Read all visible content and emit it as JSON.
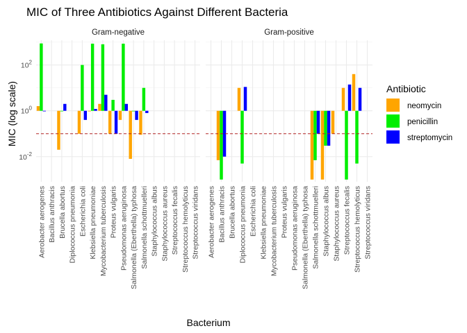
{
  "chart_data": {
    "type": "bar",
    "title": "MIC of Three Antibiotics Against Different Bacteria",
    "xlabel": "Bacterium",
    "ylabel": "MIC (log scale)",
    "y_scale": "log10",
    "y_ticks": [
      {
        "value": 0.01,
        "base": "10",
        "exp": "-2"
      },
      {
        "value": 1,
        "base": "10",
        "exp": "0"
      },
      {
        "value": 100,
        "base": "10",
        "exp": "2"
      }
    ],
    "ylim": [
      0.0008,
      1200
    ],
    "reference_line": {
      "value": 0.1,
      "style": "dashed",
      "color": "#b22222"
    },
    "legend": {
      "title": "Antibiotic",
      "entries": [
        {
          "name": "neomycin",
          "color": "#FFA500"
        },
        {
          "name": "penicillin",
          "color": "#00EE00"
        },
        {
          "name": "streptomycin",
          "color": "#0000FF"
        }
      ]
    },
    "panels": [
      {
        "label": "Gram-negative",
        "categories": [
          "Aerobacter aerogenes",
          "Bacillus anthracis",
          "Brucella abortus",
          "Diplococcus pneumonia",
          "Escherichia coli",
          "Klebsiella pneumoniae",
          "Mycobacterium tuberculosis",
          "Proteus vulgaris",
          "Pseudomonas aeruginosa",
          "Salmonella (Eberthella) typhosa",
          "Salmonella schottmuelleri",
          "Staphylococcus albus",
          "Staphylococcus aureus",
          "Streptococcus fecalis",
          "Streptococcus hemolyticus",
          "Streptococcus viridans"
        ],
        "series": [
          {
            "name": "neomycin",
            "values": [
              1.6,
              null,
              0.02,
              null,
              0.1,
              1,
              2,
              0.1,
              0.4,
              0.008,
              0.09,
              null,
              null,
              null,
              null,
              null
            ]
          },
          {
            "name": "penicillin",
            "values": [
              870,
              null,
              1,
              null,
              100,
              850,
              800,
              3,
              850,
              1,
              10,
              null,
              null,
              null,
              null,
              null
            ]
          },
          {
            "name": "streptomycin",
            "values": [
              1,
              null,
              2,
              null,
              0.4,
              1.2,
              5,
              0.1,
              2,
              0.4,
              0.8,
              null,
              null,
              null,
              null,
              null
            ]
          }
        ]
      },
      {
        "label": "Gram-positive",
        "categories": [
          "Aerobacter aerogenes",
          "Bacillus anthracis",
          "Brucella abortus",
          "Diplococcus pneumonia",
          "Escherichia coli",
          "Klebsiella pneumoniae",
          "Mycobacterium tuberculosis",
          "Proteus vulgaris",
          "Pseudomonas aeruginosa",
          "Salmonella (Eberthella) typhosa",
          "Salmonella schottmuelleri",
          "Staphylococcus albus",
          "Staphylococcus aureus",
          "Streptococcus fecalis",
          "Streptococcus hemolyticus",
          "Streptococcus viridans"
        ],
        "series": [
          {
            "name": "neomycin",
            "values": [
              null,
              0.007,
              null,
              10,
              null,
              null,
              null,
              null,
              null,
              null,
              0.001,
              0.001,
              0.1,
              10,
              null,
              null
            ]
          },
          {
            "name": "penicillin",
            "values": [
              null,
              0.001,
              null,
              0.005,
              null,
              null,
              null,
              null,
              null,
              null,
              0.007,
              0.03,
              null,
              0.001,
              0.005,
              null
            ]
          },
          {
            "name": "streptomycin",
            "values": [
              null,
              0.01,
              null,
              11,
              null,
              null,
              null,
              null,
              null,
              null,
              0.1,
              0.03,
              null,
              14,
              10,
              null
            ]
          }
        ],
        "extra_bars": [
          {
            "category": "Streptococcus hemolyticus",
            "series": "neomycin",
            "value": 40
          }
        ]
      }
    ]
  }
}
